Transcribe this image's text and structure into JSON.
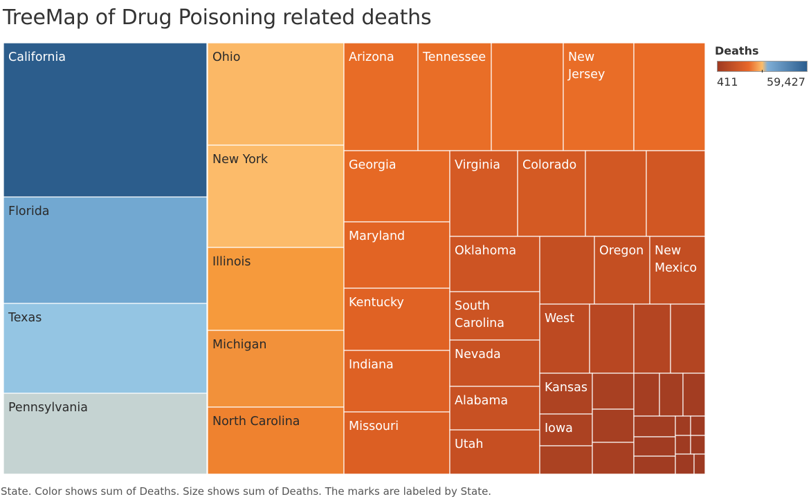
{
  "title": "TreeMap of Drug Poisoning related deaths",
  "legend": {
    "title": "Deaths",
    "min_label": "411",
    "max_label": "59,427",
    "gradient_colors": [
      "#9e3a22",
      "#e8682a",
      "#fbbd6a",
      "#7faed6",
      "#2b5d8e"
    ]
  },
  "caption": "State.  Color shows sum of Deaths.  Size shows sum of Deaths.  The marks are labeled by State.",
  "chart_data": {
    "type": "treemap",
    "size_measure": "Deaths",
    "color_measure": "Deaths",
    "color_range": [
      411,
      59427
    ],
    "cells": [
      {
        "name": "California",
        "label_lines": [
          "California"
        ],
        "color": "#2c5d8c",
        "text_color": "#ffffff"
      },
      {
        "name": "Florida",
        "label_lines": [
          "Florida"
        ],
        "color": "#72a8d1",
        "text_color": "#2a2a2a"
      },
      {
        "name": "Texas",
        "label_lines": [
          "Texas"
        ],
        "color": "#94c5e3",
        "text_color": "#2a2a2a"
      },
      {
        "name": "Pennsylvania",
        "label_lines": [
          "Pennsylvania"
        ],
        "color": "#c5d3d2",
        "text_color": "#2a2a2a"
      },
      {
        "name": "Ohio",
        "label_lines": [
          "Ohio"
        ],
        "color": "#fbb866",
        "text_color": "#2a2a2a"
      },
      {
        "name": "New York",
        "label_lines": [
          "New York"
        ],
        "color": "#fcbb6a",
        "text_color": "#2a2a2a"
      },
      {
        "name": "Illinois",
        "label_lines": [
          "Illinois"
        ],
        "color": "#f69a3c",
        "text_color": "#2a2a2a"
      },
      {
        "name": "Michigan",
        "label_lines": [
          "Michigan"
        ],
        "color": "#f2913a",
        "text_color": "#2a2a2a"
      },
      {
        "name": "North Carolina",
        "label_lines": [
          "North Carolina"
        ],
        "color": "#ef822f",
        "text_color": "#2a2a2a"
      },
      {
        "name": "Arizona",
        "label_lines": [
          "Arizona"
        ],
        "color": "#e86c26",
        "text_color": "#ffffff"
      },
      {
        "name": "Tennessee",
        "label_lines": [
          "Tennessee"
        ],
        "color": "#e96e27",
        "text_color": "#ffffff"
      },
      {
        "name": "",
        "label_lines": [],
        "color": "#e86c26",
        "text_color": "#ffffff"
      },
      {
        "name": "New Jersey",
        "label_lines": [
          "New",
          "Jersey"
        ],
        "color": "#e96d27",
        "text_color": "#ffffff"
      },
      {
        "name": "",
        "label_lines": [],
        "color": "#e96b26",
        "text_color": "#ffffff"
      },
      {
        "name": "Georgia",
        "label_lines": [
          "Georgia"
        ],
        "color": "#e66925",
        "text_color": "#ffffff"
      },
      {
        "name": "Maryland",
        "label_lines": [
          "Maryland"
        ],
        "color": "#e26424",
        "text_color": "#ffffff"
      },
      {
        "name": "Kentucky",
        "label_lines": [
          "Kentucky"
        ],
        "color": "#e06224",
        "text_color": "#ffffff"
      },
      {
        "name": "Indiana",
        "label_lines": [
          "Indiana"
        ],
        "color": "#de6124",
        "text_color": "#ffffff"
      },
      {
        "name": "Missouri",
        "label_lines": [
          "Missouri"
        ],
        "color": "#dc5f23",
        "text_color": "#ffffff"
      },
      {
        "name": "Virginia",
        "label_lines": [
          "Virginia"
        ],
        "color": "#d55a24",
        "text_color": "#ffffff"
      },
      {
        "name": "Colorado",
        "label_lines": [
          "Colorado"
        ],
        "color": "#d45a23",
        "text_color": "#ffffff"
      },
      {
        "name": "",
        "label_lines": [],
        "color": "#d25823",
        "text_color": "#ffffff"
      },
      {
        "name": "",
        "label_lines": [],
        "color": "#d15723",
        "text_color": "#ffffff"
      },
      {
        "name": "Oklahoma",
        "label_lines": [
          "Oklahoma"
        ],
        "color": "#cd5423",
        "text_color": "#ffffff"
      },
      {
        "name": "",
        "label_lines": [],
        "color": "#c44f22",
        "text_color": "#ffffff"
      },
      {
        "name": "Oregon",
        "label_lines": [
          "Oregon"
        ],
        "color": "#c44f22",
        "text_color": "#ffffff"
      },
      {
        "name": "New Mexico",
        "label_lines": [
          "New",
          "Mexico"
        ],
        "color": "#c34e22",
        "text_color": "#ffffff"
      },
      {
        "name": "South Carolina",
        "label_lines": [
          "South",
          "Carolina"
        ],
        "color": "#cc5423",
        "text_color": "#ffffff"
      },
      {
        "name": "Nevada",
        "label_lines": [
          "Nevada"
        ],
        "color": "#c95223",
        "text_color": "#ffffff"
      },
      {
        "name": "Alabama",
        "label_lines": [
          "Alabama"
        ],
        "color": "#c85123",
        "text_color": "#ffffff"
      },
      {
        "name": "Utah",
        "label_lines": [
          "Utah"
        ],
        "color": "#c64f22",
        "text_color": "#ffffff"
      },
      {
        "name": "West",
        "label_lines": [
          "West"
        ],
        "color": "#bd4a22",
        "text_color": "#ffffff"
      },
      {
        "name": "",
        "label_lines": [],
        "color": "#b84722",
        "text_color": "#ffffff"
      },
      {
        "name": "",
        "label_lines": [],
        "color": "#b44522",
        "text_color": "#ffffff"
      },
      {
        "name": "",
        "label_lines": [],
        "color": "#b34522",
        "text_color": "#ffffff"
      },
      {
        "name": "Kansas",
        "label_lines": [
          "Kansas"
        ],
        "color": "#ae4322",
        "text_color": "#ffffff"
      },
      {
        "name": "Iowa",
        "label_lines": [
          "Iowa"
        ],
        "color": "#ac4222",
        "text_color": "#ffffff"
      },
      {
        "name": "",
        "label_lines": [],
        "color": "#ab4222",
        "text_color": "#ffffff"
      },
      {
        "name": "",
        "label_lines": [],
        "color": "#a84022",
        "text_color": "#ffffff"
      },
      {
        "name": "",
        "label_lines": [],
        "color": "#a63f22",
        "text_color": "#ffffff"
      },
      {
        "name": "",
        "label_lines": [],
        "color": "#a73f22",
        "text_color": "#ffffff"
      },
      {
        "name": "",
        "label_lines": [],
        "color": "#a53e22",
        "text_color": "#ffffff"
      },
      {
        "name": "",
        "label_lines": [],
        "color": "#a43e22",
        "text_color": "#ffffff"
      },
      {
        "name": "",
        "label_lines": [],
        "color": "#a33d22",
        "text_color": "#ffffff"
      },
      {
        "name": "",
        "label_lines": [],
        "color": "#a23d22",
        "text_color": "#ffffff"
      },
      {
        "name": "",
        "label_lines": [],
        "color": "#a13c22",
        "text_color": "#ffffff"
      },
      {
        "name": "",
        "label_lines": [],
        "color": "#a13c22",
        "text_color": "#ffffff"
      },
      {
        "name": "",
        "label_lines": [],
        "color": "#a03c22",
        "text_color": "#ffffff"
      },
      {
        "name": "",
        "label_lines": [],
        "color": "#9f3b22",
        "text_color": "#ffffff"
      },
      {
        "name": "",
        "label_lines": [],
        "color": "#9f3b22",
        "text_color": "#ffffff"
      },
      {
        "name": "",
        "label_lines": [],
        "color": "#9e3b22",
        "text_color": "#ffffff"
      },
      {
        "name": "",
        "label_lines": [],
        "color": "#9e3a22",
        "text_color": "#ffffff"
      },
      {
        "name": "",
        "label_lines": [],
        "color": "#9d3a22",
        "text_color": "#ffffff"
      }
    ]
  }
}
